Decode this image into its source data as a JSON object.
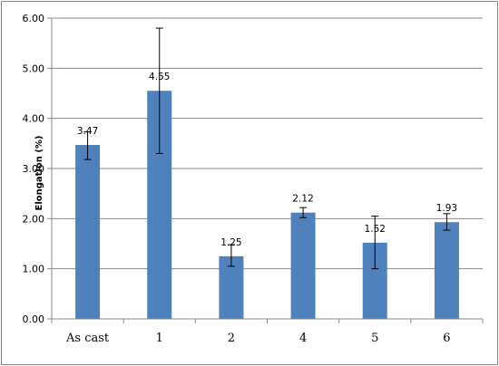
{
  "chart_data": {
    "type": "bar",
    "title": "",
    "xlabel": "",
    "ylabel": "Elongation (%)",
    "categories": [
      "As cast",
      "1",
      "2",
      "4",
      "5",
      "6"
    ],
    "values": [
      3.47,
      4.55,
      1.25,
      2.12,
      1.52,
      1.93
    ],
    "data_labels": [
      "3.47",
      "4.55",
      "1.25",
      "2.12",
      "1.52",
      "1.93"
    ],
    "error_low": [
      3.18,
      3.3,
      1.05,
      2.02,
      1.0,
      1.77
    ],
    "error_high": [
      3.73,
      5.8,
      1.48,
      2.22,
      2.05,
      2.1
    ],
    "ylim": [
      0,
      6
    ],
    "y_ticks": [
      "0.00",
      "1.00",
      "2.00",
      "3.00",
      "4.00",
      "5.00",
      "6.00"
    ],
    "grid": true,
    "legend": "none",
    "colors": {
      "bar": "#4f81bd",
      "grid": "#888888",
      "frame": "#888888"
    }
  }
}
